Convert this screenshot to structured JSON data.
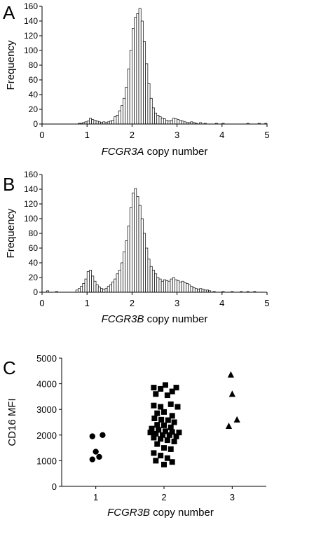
{
  "chart_data": [
    {
      "type": "bar",
      "panel": "A",
      "xlabel_italic": "FCGR3A",
      "xlabel_rest": " copy number",
      "ylabel": "Frequency",
      "xlim": [
        0,
        5
      ],
      "ylim": [
        0,
        160
      ],
      "xticks": [
        0,
        1,
        2,
        3,
        4,
        5
      ],
      "yticks": [
        0,
        20,
        40,
        60,
        80,
        100,
        120,
        140,
        160
      ],
      "bin_width": 0.05,
      "bins": [
        {
          "x": 0.8,
          "y": 1
        },
        {
          "x": 0.85,
          "y": 1
        },
        {
          "x": 0.9,
          "y": 2
        },
        {
          "x": 0.95,
          "y": 3
        },
        {
          "x": 1.0,
          "y": 4
        },
        {
          "x": 1.05,
          "y": 8
        },
        {
          "x": 1.1,
          "y": 6
        },
        {
          "x": 1.15,
          "y": 5
        },
        {
          "x": 1.2,
          "y": 4
        },
        {
          "x": 1.25,
          "y": 3
        },
        {
          "x": 1.3,
          "y": 2
        },
        {
          "x": 1.35,
          "y": 3
        },
        {
          "x": 1.4,
          "y": 2
        },
        {
          "x": 1.45,
          "y": 3
        },
        {
          "x": 1.5,
          "y": 4
        },
        {
          "x": 1.55,
          "y": 5
        },
        {
          "x": 1.6,
          "y": 10
        },
        {
          "x": 1.65,
          "y": 12
        },
        {
          "x": 1.7,
          "y": 18
        },
        {
          "x": 1.75,
          "y": 25
        },
        {
          "x": 1.8,
          "y": 35
        },
        {
          "x": 1.85,
          "y": 50
        },
        {
          "x": 1.9,
          "y": 75
        },
        {
          "x": 1.95,
          "y": 100
        },
        {
          "x": 2.0,
          "y": 130
        },
        {
          "x": 2.05,
          "y": 145
        },
        {
          "x": 2.1,
          "y": 150
        },
        {
          "x": 2.15,
          "y": 157
        },
        {
          "x": 2.2,
          "y": 140
        },
        {
          "x": 2.25,
          "y": 112
        },
        {
          "x": 2.3,
          "y": 82
        },
        {
          "x": 2.35,
          "y": 55
        },
        {
          "x": 2.4,
          "y": 35
        },
        {
          "x": 2.45,
          "y": 22
        },
        {
          "x": 2.5,
          "y": 15
        },
        {
          "x": 2.55,
          "y": 12
        },
        {
          "x": 2.6,
          "y": 10
        },
        {
          "x": 2.65,
          "y": 8
        },
        {
          "x": 2.7,
          "y": 7
        },
        {
          "x": 2.75,
          "y": 5
        },
        {
          "x": 2.8,
          "y": 4
        },
        {
          "x": 2.85,
          "y": 5
        },
        {
          "x": 2.9,
          "y": 8
        },
        {
          "x": 2.95,
          "y": 7
        },
        {
          "x": 3.0,
          "y": 6
        },
        {
          "x": 3.05,
          "y": 5
        },
        {
          "x": 3.1,
          "y": 4
        },
        {
          "x": 3.15,
          "y": 3
        },
        {
          "x": 3.2,
          "y": 2
        },
        {
          "x": 3.25,
          "y": 2
        },
        {
          "x": 3.3,
          "y": 3
        },
        {
          "x": 3.35,
          "y": 2
        },
        {
          "x": 3.4,
          "y": 1
        },
        {
          "x": 3.5,
          "y": 2
        },
        {
          "x": 3.6,
          "y": 1
        },
        {
          "x": 3.85,
          "y": 1
        },
        {
          "x": 4.0,
          "y": 1
        },
        {
          "x": 4.55,
          "y": 1
        },
        {
          "x": 4.8,
          "y": 1
        },
        {
          "x": 4.95,
          "y": 1
        }
      ]
    },
    {
      "type": "bar",
      "panel": "B",
      "xlabel_italic": "FCGR3B",
      "xlabel_rest": " copy number",
      "ylabel": "Frequency",
      "xlim": [
        0,
        5
      ],
      "ylim": [
        0,
        160
      ],
      "xticks": [
        0,
        1,
        2,
        3,
        4,
        5
      ],
      "yticks": [
        0,
        20,
        40,
        60,
        80,
        100,
        120,
        140,
        160
      ],
      "bin_width": 0.05,
      "bins": [
        {
          "x": 0.1,
          "y": 2
        },
        {
          "x": 0.3,
          "y": 1
        },
        {
          "x": 0.75,
          "y": 3
        },
        {
          "x": 0.8,
          "y": 5
        },
        {
          "x": 0.85,
          "y": 8
        },
        {
          "x": 0.9,
          "y": 12
        },
        {
          "x": 0.95,
          "y": 18
        },
        {
          "x": 1.0,
          "y": 28
        },
        {
          "x": 1.05,
          "y": 30
        },
        {
          "x": 1.1,
          "y": 22
        },
        {
          "x": 1.15,
          "y": 15
        },
        {
          "x": 1.2,
          "y": 10
        },
        {
          "x": 1.25,
          "y": 7
        },
        {
          "x": 1.3,
          "y": 5
        },
        {
          "x": 1.35,
          "y": 4
        },
        {
          "x": 1.4,
          "y": 5
        },
        {
          "x": 1.45,
          "y": 8
        },
        {
          "x": 1.5,
          "y": 10
        },
        {
          "x": 1.55,
          "y": 14
        },
        {
          "x": 1.6,
          "y": 18
        },
        {
          "x": 1.65,
          "y": 25
        },
        {
          "x": 1.7,
          "y": 30
        },
        {
          "x": 1.75,
          "y": 40
        },
        {
          "x": 1.8,
          "y": 55
        },
        {
          "x": 1.85,
          "y": 70
        },
        {
          "x": 1.9,
          "y": 90
        },
        {
          "x": 1.95,
          "y": 115
        },
        {
          "x": 2.0,
          "y": 135
        },
        {
          "x": 2.05,
          "y": 141
        },
        {
          "x": 2.1,
          "y": 130
        },
        {
          "x": 2.15,
          "y": 118
        },
        {
          "x": 2.2,
          "y": 100
        },
        {
          "x": 2.25,
          "y": 80
        },
        {
          "x": 2.3,
          "y": 60
        },
        {
          "x": 2.35,
          "y": 45
        },
        {
          "x": 2.4,
          "y": 35
        },
        {
          "x": 2.45,
          "y": 30
        },
        {
          "x": 2.5,
          "y": 25
        },
        {
          "x": 2.55,
          "y": 20
        },
        {
          "x": 2.6,
          "y": 18
        },
        {
          "x": 2.65,
          "y": 15
        },
        {
          "x": 2.7,
          "y": 17
        },
        {
          "x": 2.75,
          "y": 16
        },
        {
          "x": 2.8,
          "y": 15
        },
        {
          "x": 2.85,
          "y": 18
        },
        {
          "x": 2.9,
          "y": 20
        },
        {
          "x": 2.95,
          "y": 17
        },
        {
          "x": 3.0,
          "y": 16
        },
        {
          "x": 3.05,
          "y": 14
        },
        {
          "x": 3.1,
          "y": 15
        },
        {
          "x": 3.15,
          "y": 13
        },
        {
          "x": 3.2,
          "y": 12
        },
        {
          "x": 3.25,
          "y": 10
        },
        {
          "x": 3.3,
          "y": 8
        },
        {
          "x": 3.35,
          "y": 6
        },
        {
          "x": 3.4,
          "y": 5
        },
        {
          "x": 3.45,
          "y": 4
        },
        {
          "x": 3.5,
          "y": 5
        },
        {
          "x": 3.55,
          "y": 4
        },
        {
          "x": 3.6,
          "y": 3
        },
        {
          "x": 3.65,
          "y": 3
        },
        {
          "x": 3.7,
          "y": 2
        },
        {
          "x": 3.8,
          "y": 1
        },
        {
          "x": 4.0,
          "y": 1
        },
        {
          "x": 4.2,
          "y": 1
        },
        {
          "x": 4.4,
          "y": 1
        },
        {
          "x": 4.55,
          "y": 1
        },
        {
          "x": 4.7,
          "y": 1
        }
      ]
    },
    {
      "type": "scatter",
      "panel": "C",
      "xlabel_italic": "FCGR3B",
      "xlabel_rest": " copy number",
      "ylabel": "CD16 MFI",
      "xlim": [
        0.5,
        3.5
      ],
      "ylim": [
        0,
        5000
      ],
      "xticks": [
        1,
        2,
        3
      ],
      "yticks": [
        0,
        1000,
        2000,
        3000,
        4000,
        5000
      ],
      "series": [
        {
          "marker": "circle",
          "points": [
            [
              0.95,
              1950
            ],
            [
              1.1,
              2000
            ],
            [
              1.0,
              1350
            ],
            [
              1.05,
              1150
            ],
            [
              0.95,
              1050
            ]
          ]
        },
        {
          "marker": "square",
          "points": [
            [
              1.85,
              3850
            ],
            [
              1.95,
              3800
            ],
            [
              2.02,
              3950
            ],
            [
              2.12,
              3700
            ],
            [
              2.18,
              3850
            ],
            [
              1.88,
              3600
            ],
            [
              2.05,
              3550
            ],
            [
              1.85,
              3150
            ],
            [
              1.95,
              3100
            ],
            [
              2.1,
              3200
            ],
            [
              2.2,
              3100
            ],
            [
              2.0,
              2900
            ],
            [
              1.9,
              2850
            ],
            [
              2.12,
              2750
            ],
            [
              1.86,
              2650
            ],
            [
              1.96,
              2600
            ],
            [
              2.06,
              2580
            ],
            [
              2.15,
              2500
            ],
            [
              1.9,
              2400
            ],
            [
              2.0,
              2380
            ],
            [
              2.1,
              2300
            ],
            [
              1.82,
              2250
            ],
            [
              1.92,
              2200
            ],
            [
              2.02,
              2150
            ],
            [
              2.12,
              2120
            ],
            [
              2.22,
              2100
            ],
            [
              1.8,
              2100
            ],
            [
              1.88,
              2050
            ],
            [
              1.98,
              2000
            ],
            [
              2.08,
              2000
            ],
            [
              2.18,
              1950
            ],
            [
              1.85,
              1900
            ],
            [
              1.95,
              1850
            ],
            [
              2.05,
              1800
            ],
            [
              2.15,
              1750
            ],
            [
              1.9,
              1650
            ],
            [
              2.0,
              1500
            ],
            [
              2.1,
              1450
            ],
            [
              1.85,
              1300
            ],
            [
              1.95,
              1200
            ],
            [
              2.05,
              1100
            ],
            [
              1.88,
              1000
            ],
            [
              2.0,
              850
            ],
            [
              2.12,
              950
            ]
          ]
        },
        {
          "marker": "triangle",
          "points": [
            [
              2.98,
              4350
            ],
            [
              3.0,
              3600
            ],
            [
              3.07,
              2600
            ],
            [
              2.95,
              2350
            ]
          ]
        }
      ]
    }
  ],
  "panels": {
    "a": "A",
    "b": "B",
    "c": "C"
  }
}
